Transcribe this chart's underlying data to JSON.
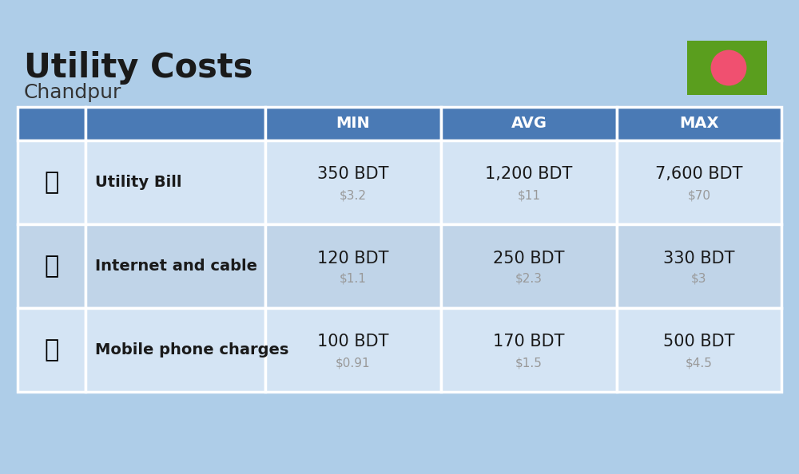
{
  "title": "Utility Costs",
  "subtitle": "Chandpur",
  "background_color": "#aecde8",
  "header_bg_color": "#4a7ab5",
  "header_text_color": "#ffffff",
  "row_bg_colors": [
    "#d4e4f4",
    "#c0d4e8"
  ],
  "table_border_color": "#ffffff",
  "columns": [
    "",
    "",
    "MIN",
    "AVG",
    "MAX"
  ],
  "rows": [
    {
      "label": "Utility Bill",
      "min_bdt": "350 BDT",
      "min_usd": "$3.2",
      "avg_bdt": "1,200 BDT",
      "avg_usd": "$11",
      "max_bdt": "7,600 BDT",
      "max_usd": "$70"
    },
    {
      "label": "Internet and cable",
      "min_bdt": "120 BDT",
      "min_usd": "$1.1",
      "avg_bdt": "250 BDT",
      "avg_usd": "$2.3",
      "max_bdt": "330 BDT",
      "max_usd": "$3"
    },
    {
      "label": "Mobile phone charges",
      "min_bdt": "100 BDT",
      "min_usd": "$0.91",
      "avg_bdt": "170 BDT",
      "avg_usd": "$1.5",
      "max_bdt": "500 BDT",
      "max_usd": "$4.5"
    }
  ],
  "flag_green": "#5a9e1e",
  "flag_red": "#f05070",
  "bdt_fontsize": 15,
  "usd_fontsize": 11,
  "label_fontsize": 14,
  "header_fontsize": 14,
  "usd_color": "#999999",
  "title_fontsize": 30,
  "subtitle_fontsize": 18
}
